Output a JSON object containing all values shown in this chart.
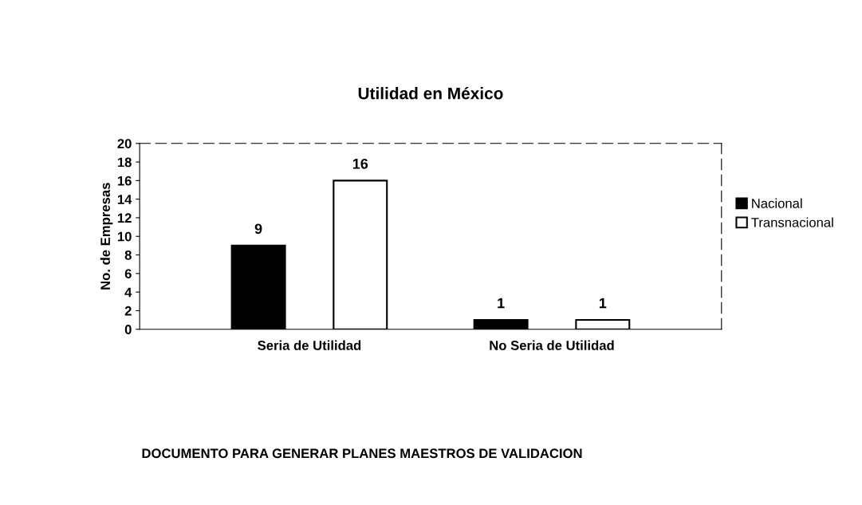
{
  "chart_data": {
    "type": "bar",
    "title": "Utilidad en México",
    "ylabel": "No. de Empresas",
    "categories": [
      "Seria de Utilidad",
      "No Seria de Utilidad"
    ],
    "series": [
      {
        "name": "Nacional",
        "color": "#000000",
        "values": [
          9,
          1
        ]
      },
      {
        "name": "Transnacional",
        "color": "#ffffff",
        "values": [
          16,
          1
        ]
      }
    ],
    "ylim": [
      0,
      20
    ],
    "yticks": [
      0,
      2,
      4,
      6,
      8,
      10,
      12,
      14,
      16,
      18,
      20
    ],
    "data_labels": true,
    "grid": false,
    "legend": "right",
    "annotations": [
      "DOCUMENTO PARA GENERAR PLANES MAESTROS DE VALIDACION"
    ]
  }
}
